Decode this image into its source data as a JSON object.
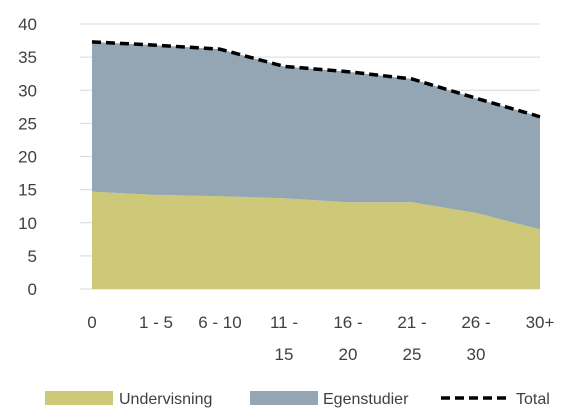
{
  "chart_data": {
    "type": "area",
    "categories": [
      [
        "0"
      ],
      [
        "1 - 5"
      ],
      [
        "6 - 10"
      ],
      [
        "11 -",
        "15"
      ],
      [
        "16 -",
        "20"
      ],
      [
        "21 -",
        "25"
      ],
      [
        "26 -",
        "30"
      ],
      [
        "30+"
      ]
    ],
    "ylim": [
      0,
      40
    ],
    "yticks": [
      0,
      5,
      10,
      15,
      20,
      25,
      30,
      35,
      40
    ],
    "grid": true,
    "stacked": true,
    "series": [
      {
        "name": "Undervisning",
        "kind": "area",
        "color": "#cdc978",
        "values": [
          14.7,
          14.2,
          14.0,
          13.7,
          13.1,
          13.1,
          11.5,
          9.0
        ]
      },
      {
        "name": "Egenstudier",
        "kind": "area",
        "color": "#94a5b3",
        "values": [
          22.6,
          22.6,
          22.2,
          19.9,
          19.7,
          18.6,
          17.3,
          17.0
        ]
      },
      {
        "name": "Total",
        "kind": "line",
        "color": "#000000",
        "dashed": true,
        "values": [
          37.3,
          36.8,
          36.2,
          33.6,
          32.8,
          31.7,
          28.8,
          26.0
        ]
      }
    ],
    "legend": {
      "position": "bottom"
    }
  }
}
